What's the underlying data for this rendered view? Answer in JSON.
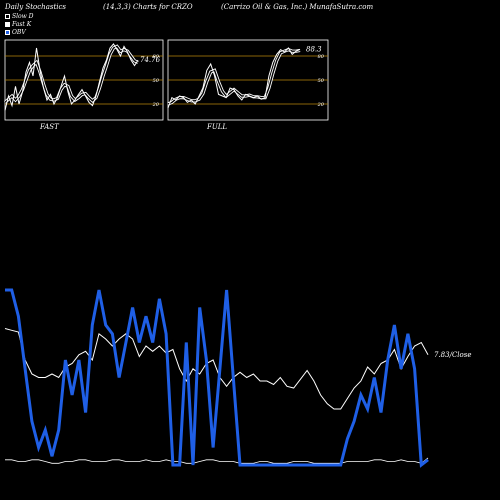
{
  "header": {
    "left": "Daily Stochastics",
    "middle": "(14,3,3) Charts for CRZO",
    "right": "(Carrizo Oil & Gas, Inc.) MunafaSutra.com"
  },
  "legend": {
    "items": [
      {
        "label": "Slow D",
        "color": "#000000"
      },
      {
        "label": "Fast K",
        "color": "#ffffff"
      },
      {
        "label": "OBV",
        "color": "#1f5fe6"
      }
    ]
  },
  "chart_data": [
    {
      "type": "line",
      "panel": "FAST",
      "label": "FAST",
      "ylim": [
        0,
        100
      ],
      "levels": [
        20,
        50,
        80
      ],
      "last_value_label": "74.76",
      "series": [
        {
          "values": [
            12,
            30,
            18,
            42,
            20,
            35,
            60,
            72,
            55,
            90,
            62,
            40,
            25,
            32,
            20,
            28,
            42,
            55,
            35,
            20,
            25,
            32,
            38,
            30,
            22,
            18,
            30,
            48,
            65,
            75,
            90,
            95,
            88,
            80,
            92,
            85,
            75,
            68,
            74.76
          ]
        },
        {
          "values": [
            22,
            26,
            30,
            25,
            30,
            38,
            50,
            62,
            68,
            72,
            60,
            45,
            32,
            26,
            25,
            27,
            38,
            44,
            42,
            30,
            25,
            28,
            32,
            33,
            28,
            24,
            28,
            40,
            55,
            68,
            82,
            90,
            92,
            86,
            88,
            86,
            80,
            74,
            72
          ]
        }
      ]
    },
    {
      "type": "line",
      "panel": "FULL",
      "label": "FULL",
      "ylim": [
        0,
        100
      ],
      "levels": [
        20,
        50,
        80
      ],
      "last_value_label": "88.3",
      "series": [
        {
          "values": [
            15,
            28,
            25,
            30,
            28,
            22,
            25,
            20,
            30,
            40,
            62,
            70,
            55,
            32,
            30,
            28,
            40,
            38,
            30,
            25,
            32,
            30,
            28,
            30,
            26,
            28,
            55,
            72,
            82,
            88,
            85,
            90,
            82,
            86,
            88.3
          ]
        },
        {
          "values": [
            20,
            22,
            26,
            28,
            28,
            26,
            24,
            24,
            26,
            33,
            48,
            60,
            62,
            48,
            36,
            30,
            34,
            38,
            34,
            30,
            30,
            31,
            29,
            29,
            28,
            28,
            40,
            58,
            74,
            84,
            86,
            88,
            86,
            86,
            87
          ]
        }
      ]
    },
    {
      "type": "line",
      "panel": "OBV",
      "last_value_label": "7.83/Close",
      "series": [
        {
          "name": "OBV",
          "values": [
            100,
            100,
            85,
            55,
            25,
            10,
            20,
            5,
            20,
            60,
            40,
            60,
            30,
            80,
            100,
            80,
            75,
            50,
            70,
            90,
            70,
            85,
            70,
            95,
            75,
            0,
            0,
            70,
            0,
            90,
            60,
            10,
            55,
            100,
            50,
            0,
            0,
            0,
            0,
            0,
            0,
            0,
            0,
            0,
            0,
            0,
            0,
            0,
            0,
            0,
            0,
            15,
            25,
            40,
            32,
            50,
            30,
            60,
            80,
            55,
            75,
            55,
            0,
            3
          ]
        },
        {
          "name": "Close",
          "values": [
            78,
            77,
            76,
            60,
            52,
            50,
            50,
            52,
            50,
            56,
            58,
            63,
            65,
            60,
            75,
            72,
            68,
            72,
            75,
            72,
            62,
            68,
            65,
            68,
            64,
            66,
            55,
            48,
            55,
            52,
            58,
            60,
            50,
            45,
            50,
            53,
            50,
            52,
            48,
            48,
            46,
            50,
            45,
            44,
            49,
            54,
            48,
            40,
            35,
            32,
            32,
            38,
            44,
            48,
            56,
            52,
            58,
            60,
            66,
            55,
            62,
            68,
            70,
            63
          ]
        },
        {
          "values": [
            3,
            3,
            2,
            2,
            3,
            3,
            2,
            1,
            1,
            2,
            2,
            3,
            3,
            2,
            2,
            2,
            3,
            3,
            2,
            2,
            2,
            3,
            2,
            2,
            3,
            2,
            2,
            1,
            1,
            2,
            3,
            3,
            2,
            2,
            2,
            1,
            1,
            1,
            2,
            2,
            1,
            1,
            1,
            2,
            2,
            2,
            1,
            1,
            1,
            1,
            1,
            2,
            2,
            2,
            2,
            3,
            3,
            2,
            2,
            3,
            2,
            2,
            1,
            4
          ]
        }
      ]
    }
  ]
}
